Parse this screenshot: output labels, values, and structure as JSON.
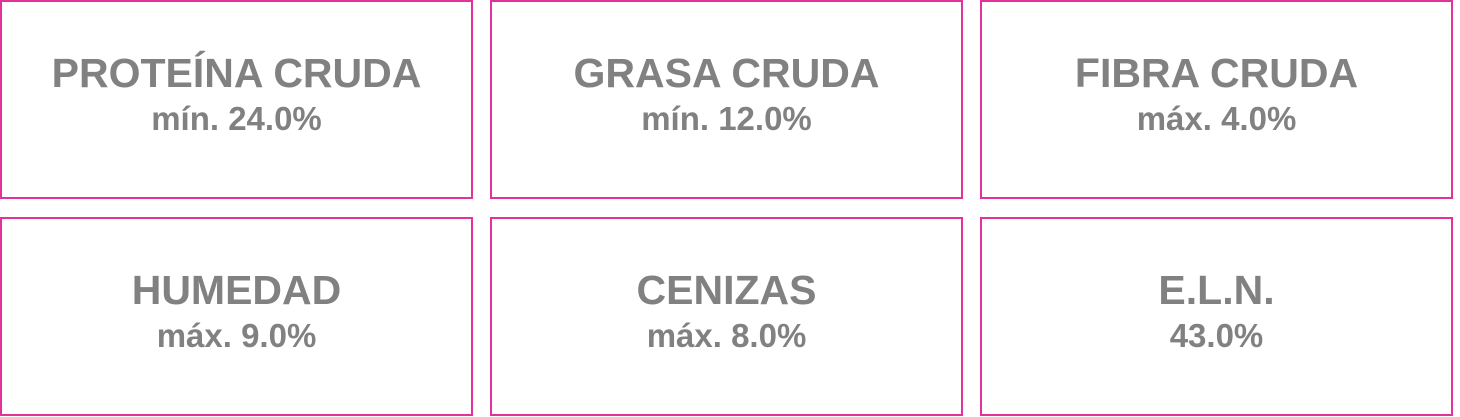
{
  "border_color": "#e4329c",
  "text_color": "#818181",
  "items": [
    {
      "name": "PROTEÍNA CRUDA",
      "value": "mín. 24.0%"
    },
    {
      "name": "GRASA CRUDA",
      "value": "mín. 12.0%"
    },
    {
      "name": "FIBRA CRUDA",
      "value": "máx. 4.0%"
    },
    {
      "name": "HUMEDAD",
      "value": "máx. 9.0%"
    },
    {
      "name": "CENIZAS",
      "value": "máx. 8.0%"
    },
    {
      "name": "E.L.N.",
      "value": "43.0%"
    }
  ]
}
